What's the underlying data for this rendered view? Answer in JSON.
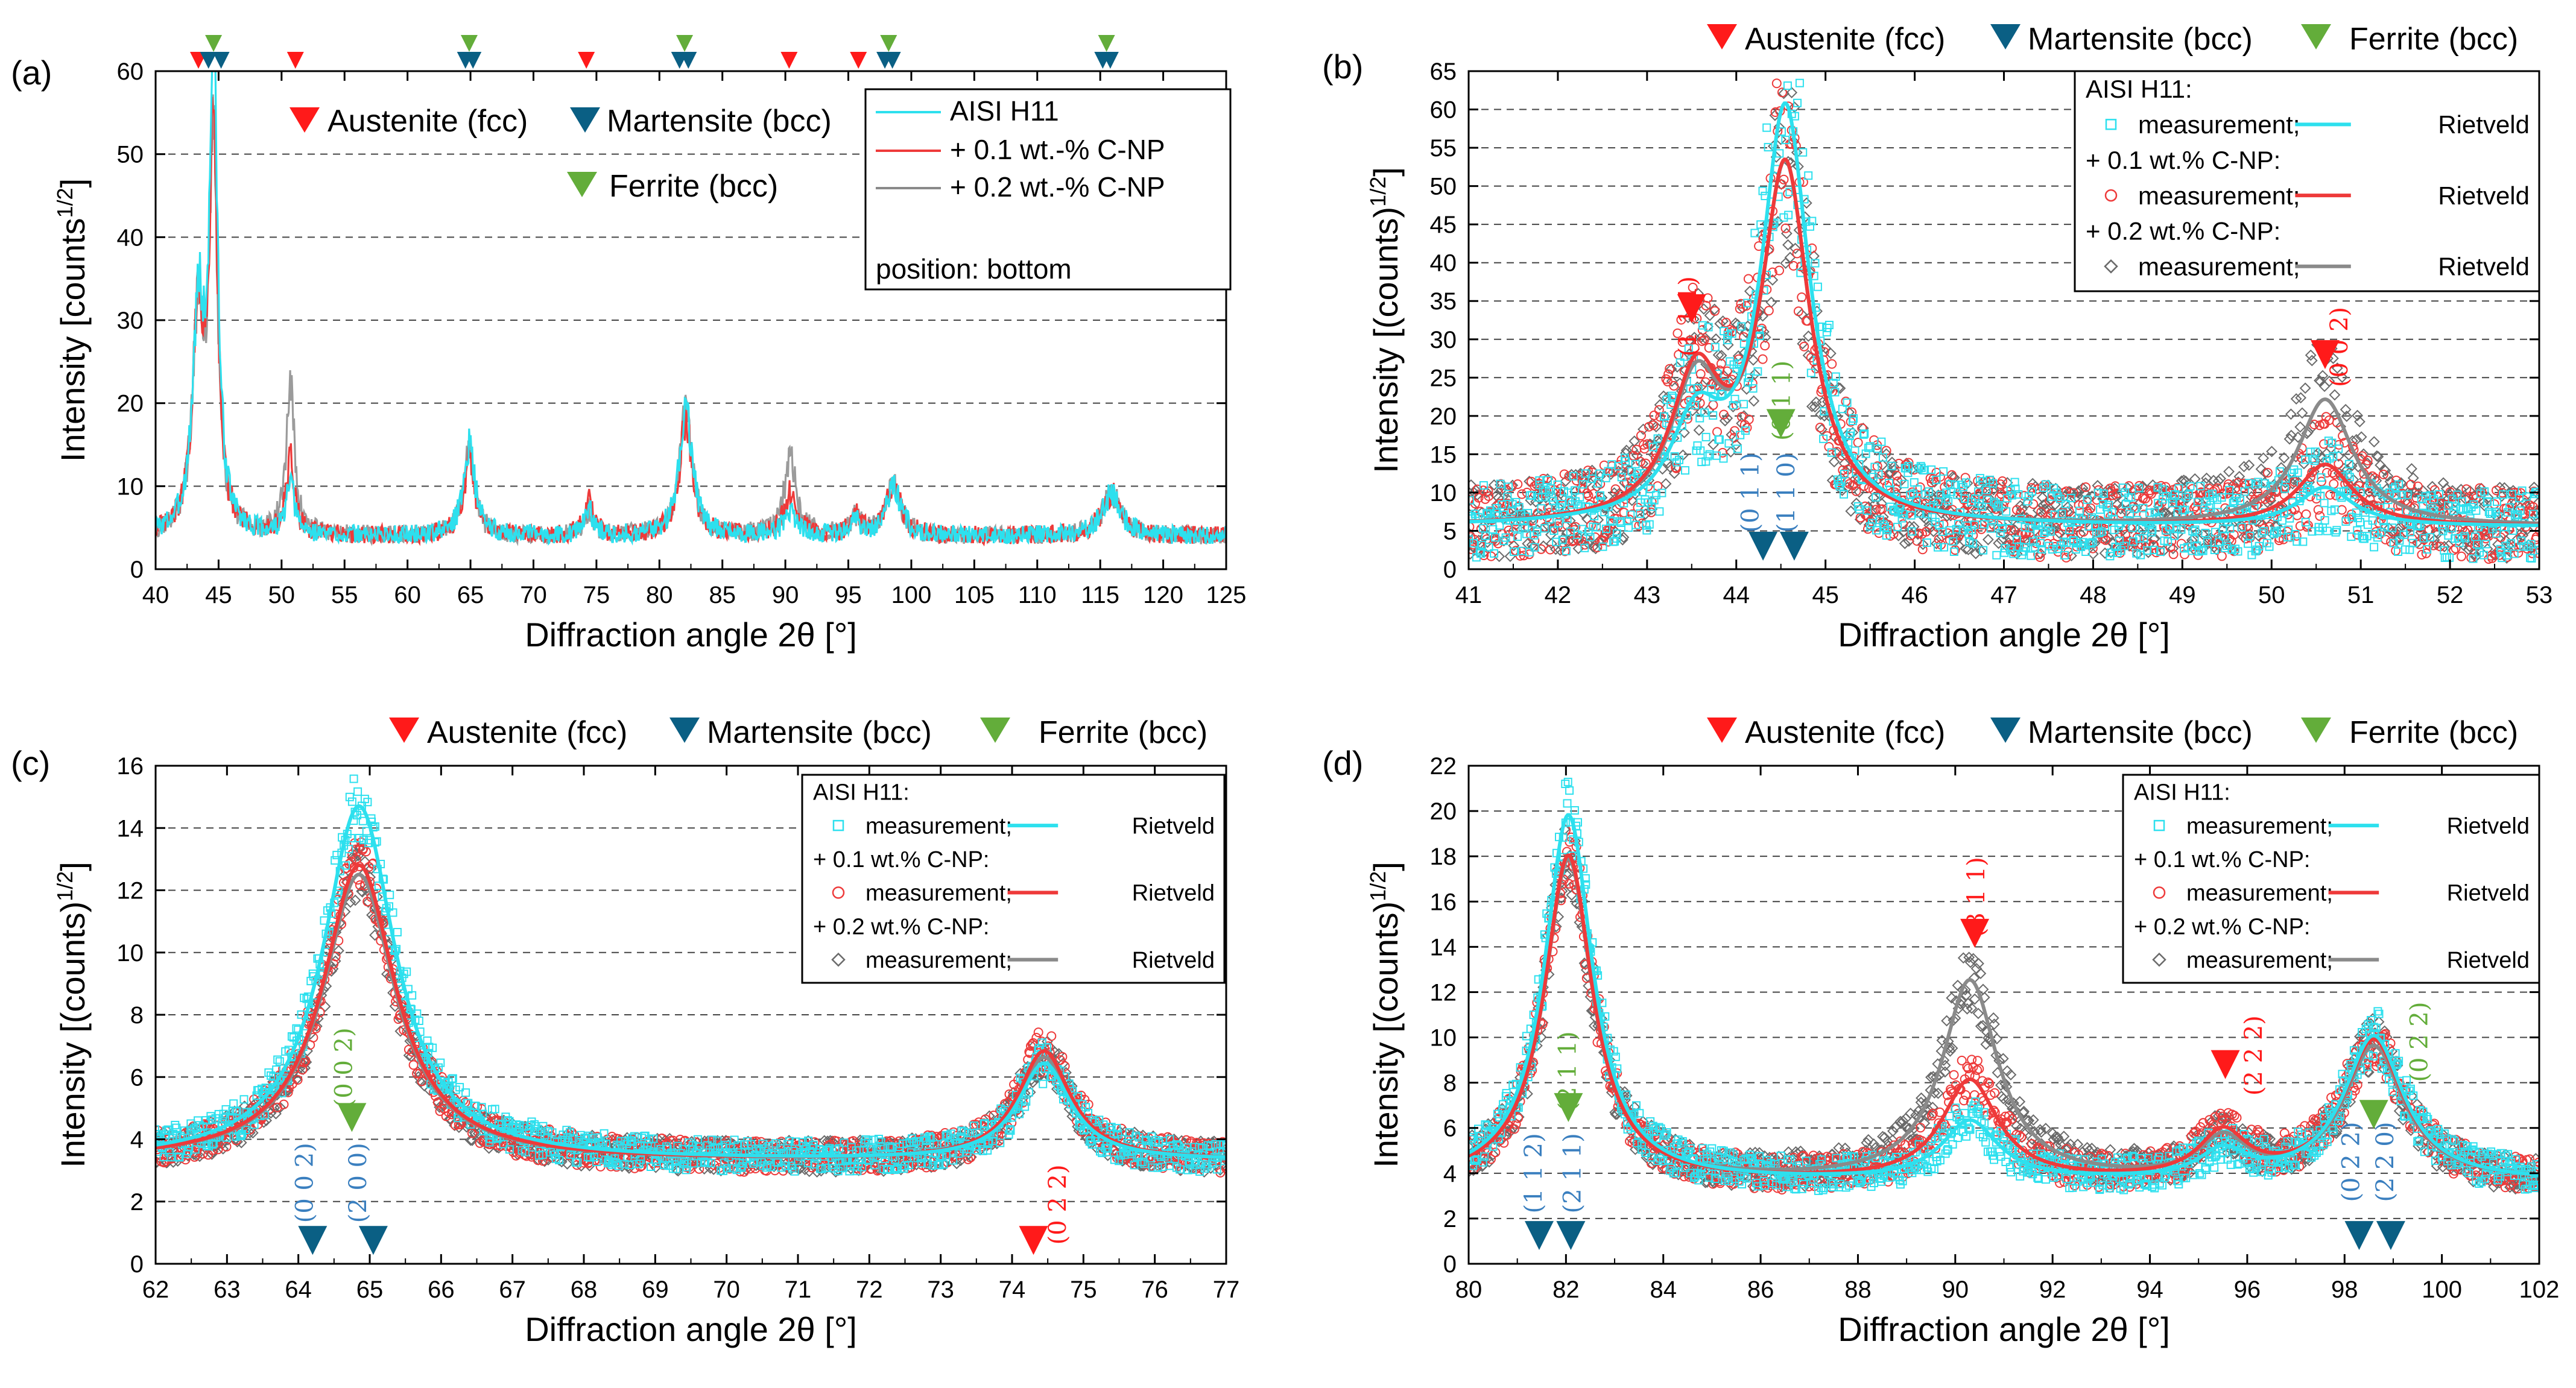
{
  "colors": {
    "austenite": "#ff1a1a",
    "martensite": "#0a5f84",
    "ferrite": "#63ad3a",
    "h11": "#2de0ee",
    "np01": "#ee3a3a",
    "np02": "#8a8a8a",
    "hkl_martensite": "#3a7fbf",
    "grid": "#444444"
  },
  "shared": {
    "xlabel": "Diffraction angle 2θ [°]",
    "legend_phases": {
      "austenite": "Austenite (fcc)",
      "martensite": "Martensite (bcc)",
      "ferrite": "Ferrite (bcc)"
    },
    "legend_header": "AISI H11:",
    "legend_meas": "measurement;",
    "legend_riet": "Rietveld",
    "legend_np01": "+ 0.1 wt.% C-NP:",
    "legend_np02": "+ 0.2 wt.% C-NP:"
  },
  "chart_data": [
    {
      "panel": "(a)",
      "type": "line",
      "ylabel": "Intensity [counts",
      "ylabel_sup": "1/2",
      "ylabel_end": "]",
      "xlim": [
        40,
        125
      ],
      "ylim": [
        0,
        60
      ],
      "xticks": [
        40,
        45,
        50,
        55,
        60,
        65,
        70,
        75,
        80,
        85,
        90,
        95,
        100,
        105,
        110,
        115,
        120,
        125
      ],
      "yticks": [
        0,
        10,
        20,
        30,
        40,
        50,
        60
      ],
      "grid": "dashed horizontal",
      "background": 4,
      "peaks": [
        {
          "pos": 43.4,
          "w": 0.55,
          "h": [
            26,
            26,
            26
          ]
        },
        {
          "pos": 44.6,
          "w": 0.38,
          "h": [
            58,
            49,
            46
          ]
        },
        {
          "pos": 50.7,
          "w": 0.4,
          "h": [
            6,
            9,
            18
          ]
        },
        {
          "pos": 64.9,
          "w": 0.55,
          "h": [
            11,
            9,
            10
          ]
        },
        {
          "pos": 74.4,
          "w": 0.45,
          "h": [
            3,
            4,
            3
          ]
        },
        {
          "pos": 82.1,
          "w": 0.6,
          "h": [
            16,
            14,
            15
          ]
        },
        {
          "pos": 90.4,
          "w": 0.6,
          "h": [
            3,
            5,
            9
          ]
        },
        {
          "pos": 95.6,
          "w": 0.5,
          "h": [
            1.5,
            2.5,
            2
          ]
        },
        {
          "pos": 98.6,
          "w": 0.7,
          "h": [
            6,
            6,
            6
          ]
        },
        {
          "pos": 115.9,
          "w": 0.9,
          "h": [
            5,
            5,
            5
          ]
        }
      ],
      "series": [
        {
          "name": "AISI H11"
        },
        {
          "name": "+ 0.1 wt.-% C-NP"
        },
        {
          "name": "+ 0.2 wt.-% C-NP"
        }
      ],
      "legend_extra": "position: bottom",
      "markers": [
        {
          "type": "austenite",
          "x": 43.4
        },
        {
          "type": "ferrite",
          "x": 44.6
        },
        {
          "type": "martensite",
          "x": 44.2
        },
        {
          "type": "martensite",
          "x": 45.2
        },
        {
          "type": "austenite",
          "x": 51.1
        },
        {
          "type": "ferrite",
          "x": 64.9
        },
        {
          "type": "martensite",
          "x": 64.6
        },
        {
          "type": "martensite",
          "x": 65.2
        },
        {
          "type": "austenite",
          "x": 74.2
        },
        {
          "type": "ferrite",
          "x": 82.0
        },
        {
          "type": "martensite",
          "x": 81.6
        },
        {
          "type": "martensite",
          "x": 82.3
        },
        {
          "type": "austenite",
          "x": 90.3
        },
        {
          "type": "austenite",
          "x": 95.8
        },
        {
          "type": "ferrite",
          "x": 98.2
        },
        {
          "type": "martensite",
          "x": 97.9
        },
        {
          "type": "martensite",
          "x": 98.5
        },
        {
          "type": "ferrite",
          "x": 115.5
        },
        {
          "type": "martensite",
          "x": 115.2
        },
        {
          "type": "martensite",
          "x": 115.8
        }
      ]
    },
    {
      "panel": "(b)",
      "type": "scatter+line",
      "ylabel": "Intensity [(counts)",
      "ylabel_sup": "1/2",
      "ylabel_end": "]",
      "xlim": [
        41,
        53
      ],
      "ylim": [
        0,
        65
      ],
      "xticks": [
        41,
        42,
        43,
        44,
        45,
        46,
        47,
        48,
        49,
        50,
        51,
        52,
        53
      ],
      "yticks": [
        0,
        5,
        10,
        15,
        20,
        25,
        30,
        35,
        40,
        45,
        50,
        55,
        60,
        65
      ],
      "grid": "dashed horizontal",
      "background": 5.5,
      "peaks": [
        {
          "pos": 43.55,
          "w": 0.35,
          "h": [
            12,
            18,
            17
          ]
        },
        {
          "pos": 44.55,
          "w": 0.33,
          "h": [
            54,
            46,
            46
          ]
        },
        {
          "pos": 50.6,
          "w": 0.38,
          "h": [
            5,
            8,
            16.5
          ]
        }
      ],
      "hkl": [
        {
          "text": "(1 1 1)",
          "x": 43.55,
          "y": 33,
          "color": "austenite"
        },
        {
          "text": "(0 1 1)",
          "x": 44.6,
          "y": 22,
          "color": "ferrite"
        },
        {
          "text": "(0 1 1)",
          "x": 44.25,
          "y": 10,
          "color": "hkl_martensite"
        },
        {
          "text": "(1 1 0)",
          "x": 44.65,
          "y": 10,
          "color": "hkl_martensite"
        },
        {
          "text": "(0 0 2)",
          "x": 50.85,
          "y": 29,
          "color": "austenite"
        }
      ],
      "markers": [
        {
          "type": "austenite",
          "x": 43.5,
          "y": 34
        },
        {
          "type": "ferrite",
          "x": 44.5,
          "y": 19
        },
        {
          "type": "martensite",
          "x": 44.3,
          "y": 3
        },
        {
          "type": "martensite",
          "x": 44.65,
          "y": 3
        },
        {
          "type": "austenite",
          "x": 50.6,
          "y": 28
        }
      ]
    },
    {
      "panel": "(c)",
      "type": "scatter+line",
      "ylabel": "Intensity [(counts)",
      "ylabel_sup": "1/2",
      "ylabel_end": "]",
      "xlim": [
        62,
        77
      ],
      "ylim": [
        0,
        16
      ],
      "xticks": [
        62,
        63,
        64,
        65,
        66,
        67,
        68,
        69,
        70,
        71,
        72,
        73,
        74,
        75,
        76,
        77
      ],
      "yticks": [
        0,
        2,
        4,
        6,
        8,
        10,
        12,
        14,
        16
      ],
      "grid": "dashed horizontal",
      "background": 3.3,
      "peaks": [
        {
          "pos": 64.85,
          "w": 0.62,
          "h": [
            11.4,
            9.5,
            9.2
          ]
        },
        {
          "pos": 74.45,
          "w": 0.45,
          "h": [
            3.1,
            3.5,
            3.3
          ]
        }
      ],
      "hkl": [
        {
          "text": "(0 0 2)",
          "x": 64.75,
          "y": 6.3,
          "color": "ferrite"
        },
        {
          "text": "(0 0 2)",
          "x": 64.2,
          "y": 2.6,
          "color": "hkl_martensite"
        },
        {
          "text": "(2 0 0)",
          "x": 64.95,
          "y": 2.6,
          "color": "hkl_martensite"
        },
        {
          "text": "(0 2 2)",
          "x": 74.75,
          "y": 1.9,
          "color": "austenite"
        }
      ],
      "markers": [
        {
          "type": "ferrite",
          "x": 64.75,
          "y": 4.7
        },
        {
          "type": "martensite",
          "x": 64.2,
          "y": 0.75
        },
        {
          "type": "martensite",
          "x": 65.05,
          "y": 0.75
        },
        {
          "type": "austenite",
          "x": 74.3,
          "y": 0.75
        }
      ]
    },
    {
      "panel": "(d)",
      "type": "scatter+line",
      "ylabel": "Intensity [(counts)",
      "ylabel_sup": "1/2",
      "ylabel_end": "]",
      "xlim": [
        80,
        102
      ],
      "ylim": [
        0,
        22
      ],
      "xticks": [
        80,
        82,
        84,
        86,
        88,
        90,
        92,
        94,
        96,
        98,
        100,
        102
      ],
      "yticks": [
        0,
        2,
        4,
        6,
        8,
        10,
        12,
        14,
        16,
        18,
        20,
        22
      ],
      "grid": "dashed horizontal",
      "background": 3.6,
      "peaks": [
        {
          "pos": 82.05,
          "w": 0.6,
          "h": [
            16.2,
            14.4,
            14.2
          ]
        },
        {
          "pos": 90.3,
          "w": 0.7,
          "h": [
            2.6,
            4.4,
            8.8
          ]
        },
        {
          "pos": 95.5,
          "w": 0.6,
          "h": [
            1.2,
            2,
            1.7
          ]
        },
        {
          "pos": 98.6,
          "w": 0.75,
          "h": [
            6.4,
            6.2,
            5.9
          ]
        }
      ],
      "hkl": [
        {
          "text": "(2 1 1)",
          "x": 82.2,
          "y": 8.5,
          "color": "ferrite"
        },
        {
          "text": "(1 1 2)",
          "x": 81.5,
          "y": 4.0,
          "color": "hkl_martensite"
        },
        {
          "text": "(2 1 1)",
          "x": 82.3,
          "y": 4.0,
          "color": "hkl_martensite"
        },
        {
          "text": "(3 1 1)",
          "x": 90.6,
          "y": 16.2,
          "color": "austenite"
        },
        {
          "text": "(2 2 2)",
          "x": 96.3,
          "y": 9.2,
          "color": "austenite"
        },
        {
          "text": "(0 2 2)",
          "x": 98.3,
          "y": 4.5,
          "color": "hkl_martensite"
        },
        {
          "text": "(2 2 0)",
          "x": 99.0,
          "y": 4.5,
          "color": "hkl_martensite"
        },
        {
          "text": "(0 2 2)",
          "x": 99.7,
          "y": 9.8,
          "color": "ferrite"
        }
      ],
      "markers": [
        {
          "type": "ferrite",
          "x": 82.05,
          "y": 6.9
        },
        {
          "type": "martensite",
          "x": 81.45,
          "y": 1.25
        },
        {
          "type": "martensite",
          "x": 82.1,
          "y": 1.25
        },
        {
          "type": "austenite",
          "x": 90.4,
          "y": 14.6
        },
        {
          "type": "austenite",
          "x": 95.55,
          "y": 8.8
        },
        {
          "type": "ferrite",
          "x": 98.6,
          "y": 6.6
        },
        {
          "type": "martensite",
          "x": 98.3,
          "y": 1.25
        },
        {
          "type": "martensite",
          "x": 98.95,
          "y": 1.25
        }
      ]
    }
  ]
}
